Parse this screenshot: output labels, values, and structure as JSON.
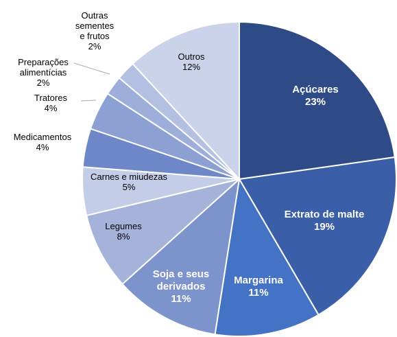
{
  "chart_data": {
    "type": "pie",
    "categories": [
      "Açúcares",
      "Extrato de malte",
      "Margarina",
      "Soja e seus derivados",
      "Legumes",
      "Carnes e miudezas",
      "Medicamentos",
      "Tratores",
      "Preparações alimentícias",
      "Outras sementes e frutos",
      "Outros"
    ],
    "values": [
      23,
      19,
      11,
      11,
      8,
      5,
      4,
      4,
      2,
      2,
      12
    ],
    "value_labels": [
      "23%",
      "19%",
      "11%",
      "11%",
      "8%",
      "5%",
      "4%",
      "4%",
      "2%",
      "2%",
      "12%"
    ],
    "colors": [
      "#2e4a87",
      "#3a5ea8",
      "#4472c4",
      "#7d93cc",
      "#a5b3da",
      "#c4cde8",
      "#6e87c9",
      "#8da0d4",
      "#9eaedb",
      "#b4c0e2",
      "#cbd3ea"
    ]
  }
}
